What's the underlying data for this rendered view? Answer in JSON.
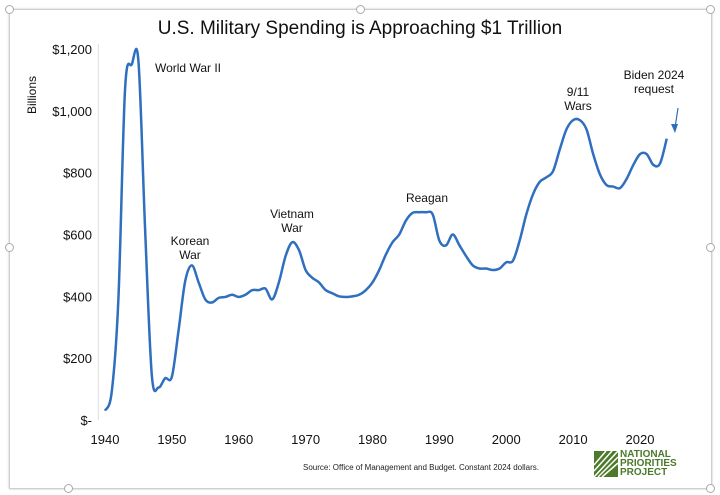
{
  "chart_data": {
    "type": "line",
    "title": "U.S. Military Spending is Approaching $1 Trillion",
    "ylabel": "Billions",
    "xlabel": "",
    "xlim": [
      1940,
      2024
    ],
    "ylim": [
      0,
      1200
    ],
    "grid": false,
    "x_ticks": [
      1940,
      1950,
      1960,
      1970,
      1980,
      1990,
      2000,
      2010,
      2020
    ],
    "y_ticks": [
      {
        "value": 0,
        "label": "$-"
      },
      {
        "value": 200,
        "label": "$200"
      },
      {
        "value": 400,
        "label": "$400"
      },
      {
        "value": 600,
        "label": "$600"
      },
      {
        "value": 800,
        "label": "$800"
      },
      {
        "value": 1000,
        "label": "$1,000"
      },
      {
        "value": 1200,
        "label": "$1,200"
      }
    ],
    "line_color": "#2f6fbf",
    "x": [
      1940,
      1941,
      1942,
      1943,
      1944,
      1945,
      1946,
      1947,
      1948,
      1949,
      1950,
      1951,
      1952,
      1953,
      1954,
      1955,
      1956,
      1957,
      1958,
      1959,
      1960,
      1961,
      1962,
      1963,
      1964,
      1965,
      1966,
      1967,
      1968,
      1969,
      1970,
      1971,
      1972,
      1973,
      1974,
      1975,
      1976,
      1977,
      1978,
      1979,
      1980,
      1981,
      1982,
      1983,
      1984,
      1985,
      1986,
      1987,
      1988,
      1989,
      1990,
      1991,
      1992,
      1993,
      1994,
      1995,
      1996,
      1997,
      1998,
      1999,
      2000,
      2001,
      2002,
      2003,
      2004,
      2005,
      2006,
      2007,
      2008,
      2009,
      2010,
      2011,
      2012,
      2013,
      2014,
      2015,
      2016,
      2017,
      2018,
      2019,
      2020,
      2021,
      2022,
      2023,
      2024
    ],
    "values": [
      30,
      90,
      390,
      1070,
      1150,
      1160,
      615,
      145,
      105,
      135,
      140,
      290,
      450,
      500,
      445,
      390,
      380,
      395,
      398,
      405,
      398,
      405,
      420,
      420,
      425,
      390,
      445,
      530,
      575,
      550,
      485,
      460,
      445,
      420,
      410,
      400,
      398,
      400,
      405,
      420,
      445,
      485,
      535,
      575,
      600,
      645,
      670,
      672,
      672,
      665,
      580,
      565,
      600,
      565,
      530,
      500,
      490,
      490,
      485,
      490,
      510,
      515,
      580,
      665,
      730,
      770,
      785,
      805,
      875,
      940,
      970,
      970,
      940,
      860,
      795,
      760,
      755,
      750,
      780,
      825,
      860,
      860,
      825,
      830,
      910
    ],
    "annotations": [
      {
        "text": "World War II",
        "x": 1945,
        "y": 1160
      },
      {
        "text": "Korean\nWar",
        "x": 1953,
        "y": 500
      },
      {
        "text": "Vietnam\nWar",
        "x": 1968,
        "y": 575
      },
      {
        "text": "Reagan",
        "x": 1987,
        "y": 672
      },
      {
        "text": "9/11\nWars",
        "x": 2010,
        "y": 970
      },
      {
        "text": "Biden 2024\nrequest",
        "x": 2024,
        "y": 910
      }
    ]
  },
  "footer": {
    "source": "Source: Office of Management and Budget. Constant 2024 dollars.",
    "logo_lines": [
      "NATIONAL",
      "PRIORITIES",
      "PROJECT"
    ],
    "logo_color": "#4d7a2a"
  }
}
